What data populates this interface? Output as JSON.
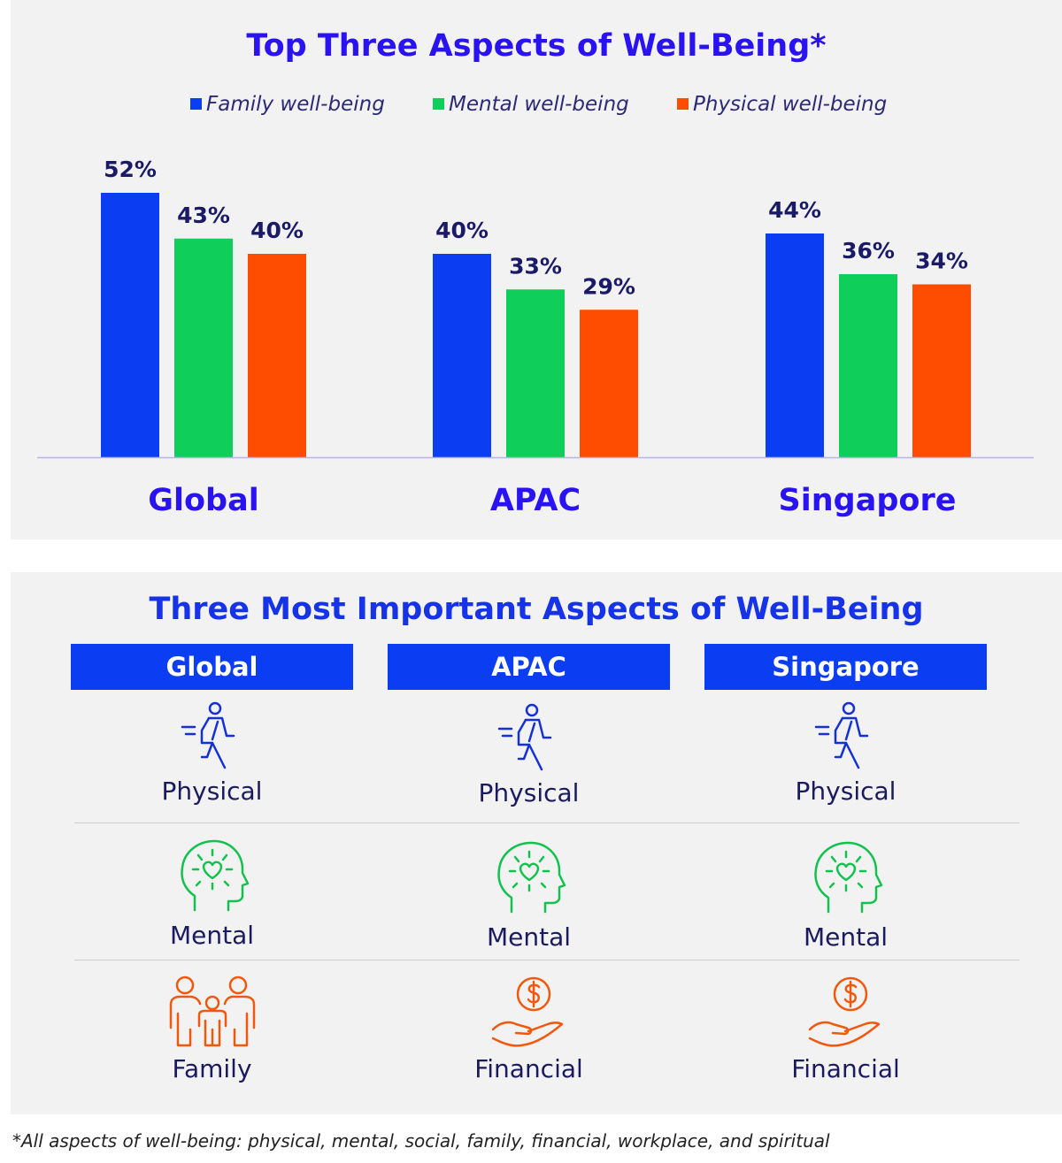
{
  "chart_data": {
    "type": "bar",
    "title": "Top Three Aspects of Well-Being*",
    "categories": [
      "Global",
      "APAC",
      "Singapore"
    ],
    "series": [
      {
        "name": "Family well-being",
        "color": "#0b3ef2",
        "values": [
          52,
          40,
          44
        ],
        "labels": [
          "52%",
          "40%",
          "44%"
        ]
      },
      {
        "name": "Mental well-being",
        "color": "#0fcf5a",
        "values": [
          43,
          33,
          36
        ],
        "labels": [
          "43%",
          "33%",
          "36%"
        ]
      },
      {
        "name": "Physical well-being",
        "color": "#ff4d00",
        "values": [
          40,
          29,
          34
        ],
        "labels": [
          "40%",
          "29%",
          "34%"
        ]
      }
    ],
    "ylim": [
      0,
      52
    ],
    "unit": "%",
    "legend_position": "top",
    "grid": false
  },
  "importance_table": {
    "title": "Three Most Important Aspects of Well-Being",
    "columns": [
      {
        "header": "Global",
        "items": [
          {
            "label": "Physical",
            "icon": "running-person-icon",
            "color": "#1430d9"
          },
          {
            "label": "Mental",
            "icon": "head-heart-icon",
            "color": "#12c24f"
          },
          {
            "label": "Family",
            "icon": "family-icon",
            "color": "#f2580c"
          }
        ]
      },
      {
        "header": "APAC",
        "items": [
          {
            "label": "Physical",
            "icon": "running-person-icon",
            "color": "#1430d9"
          },
          {
            "label": "Mental",
            "icon": "head-heart-icon",
            "color": "#12c24f"
          },
          {
            "label": "Financial",
            "icon": "hand-coin-icon",
            "color": "#f2580c"
          }
        ]
      },
      {
        "header": "Singapore",
        "items": [
          {
            "label": "Physical",
            "icon": "running-person-icon",
            "color": "#1430d9"
          },
          {
            "label": "Mental",
            "icon": "head-heart-icon",
            "color": "#12c24f"
          },
          {
            "label": "Financial",
            "icon": "hand-coin-icon",
            "color": "#f2580c"
          }
        ]
      }
    ]
  },
  "footnote": "*All aspects of well-being: physical, mental, social, family, financial, workplace, and spiritual"
}
